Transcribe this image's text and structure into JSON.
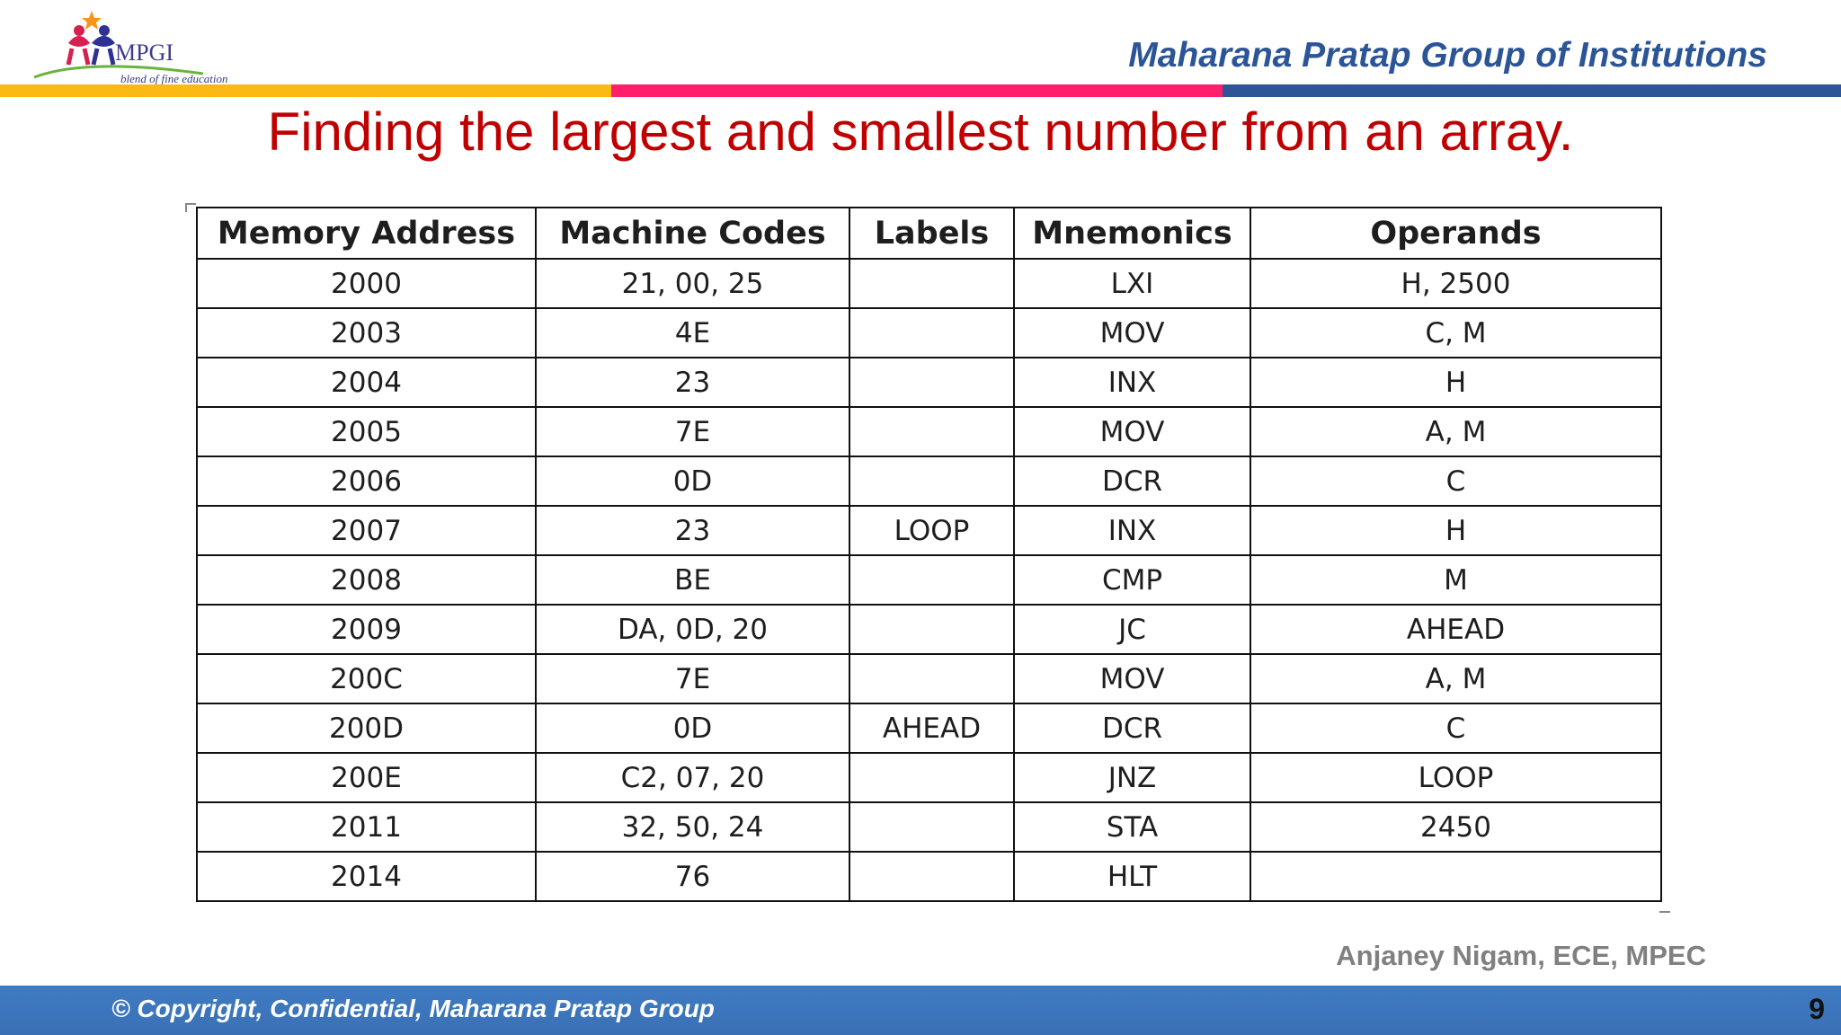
{
  "header": {
    "logo_text": "MPGI",
    "logo_tagline": "blend of fine education",
    "institution_name": "Maharana Pratap Group of Institutions",
    "stripe_colors": [
      "#fbb913",
      "#ff1f6a",
      "#2e5596"
    ]
  },
  "slide": {
    "title": "Finding the largest and smallest number from an array.",
    "title_color": "#c00000"
  },
  "table": {
    "headers": [
      "Memory Address",
      "Machine Codes",
      "Labels",
      "Mnemonics",
      "Operands"
    ],
    "rows": [
      [
        "2000",
        "21, 00, 25",
        "",
        "LXI",
        "H, 2500"
      ],
      [
        "2003",
        "4E",
        "",
        "MOV",
        "C, M"
      ],
      [
        "2004",
        "23",
        "",
        "INX",
        "H"
      ],
      [
        "2005",
        "7E",
        "",
        "MOV",
        "A, M"
      ],
      [
        "2006",
        "0D",
        "",
        "DCR",
        "C"
      ],
      [
        "2007",
        "23",
        "LOOP",
        "INX",
        "H"
      ],
      [
        "2008",
        "BE",
        "",
        "CMP",
        "M"
      ],
      [
        "2009",
        "DA, 0D, 20",
        "",
        "JC",
        "AHEAD"
      ],
      [
        "200C",
        "7E",
        "",
        "MOV",
        "A, M"
      ],
      [
        "200D",
        "0D",
        "AHEAD",
        "DCR",
        "C"
      ],
      [
        "200E",
        "C2, 07, 20",
        "",
        "JNZ",
        "LOOP"
      ],
      [
        "2011",
        "32, 50, 24",
        "",
        "STA",
        "2450"
      ],
      [
        "2014",
        "76",
        "",
        "HLT",
        ""
      ]
    ]
  },
  "author": "Anjaney Nigam, ECE, MPEC",
  "footer": {
    "copyright": "© Copyright, Confidential, Maharana Pratap Group",
    "page_number": "9",
    "bar_color": "#3d76bd"
  }
}
